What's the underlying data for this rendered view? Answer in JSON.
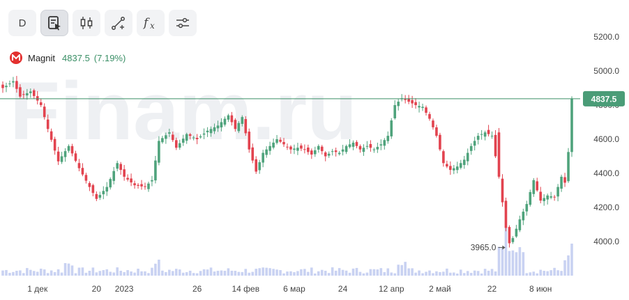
{
  "toolbar": {
    "interval_label": "D",
    "buttons": [
      "interval-button",
      "indicator-template-icon",
      "candle-type-icon",
      "drawing-tool-icon",
      "function-fx-icon",
      "settings-sliders-icon"
    ]
  },
  "legend": {
    "ticker": "Magnit",
    "last_price": "4837.5",
    "change": "(7.19%)"
  },
  "watermark": "Finam.ru",
  "colors": {
    "up": "#4fa37c",
    "down": "#e2434f",
    "volume": "#c9d2f2",
    "price_line": "#3a8f66",
    "price_label_bg": "#4a9c77"
  },
  "chart_data": {
    "type": "candlestick",
    "y_axis": {
      "min": 3900,
      "max": 5300,
      "ticks": [
        4000,
        4200,
        4400,
        4600,
        4800,
        5000,
        5200
      ]
    },
    "tick_labels": [
      "4000.0",
      "4200.0",
      "4400.0",
      "4600.0",
      "4800.0",
      "5000.0",
      "5200.0"
    ],
    "x_labels": [
      {
        "label": "1 дек",
        "index": 10
      },
      {
        "label": "20",
        "index": 27
      },
      {
        "label": "2023",
        "index": 35
      },
      {
        "label": "26",
        "index": 56
      },
      {
        "label": "14 фев",
        "index": 70
      },
      {
        "label": "6 мар",
        "index": 84
      },
      {
        "label": "24",
        "index": 98
      },
      {
        "label": "12 апр",
        "index": 112
      },
      {
        "label": "2 май",
        "index": 126
      },
      {
        "label": "22",
        "index": 141
      },
      {
        "label": "8 июн",
        "index": 155
      }
    ],
    "last_price": 4837.5,
    "last_price_label": "4837.5",
    "low_marker": {
      "value": 3965.0,
      "label": "3965.0",
      "index": 146
    },
    "anchor_closes": [
      [
        0,
        4900
      ],
      [
        3,
        4940
      ],
      [
        5,
        4850
      ],
      [
        8,
        4880
      ],
      [
        11,
        4800
      ],
      [
        13,
        4660
      ],
      [
        16,
        4470
      ],
      [
        19,
        4560
      ],
      [
        22,
        4430
      ],
      [
        25,
        4320
      ],
      [
        27,
        4250
      ],
      [
        30,
        4320
      ],
      [
        33,
        4460
      ],
      [
        35,
        4380
      ],
      [
        38,
        4330
      ],
      [
        41,
        4320
      ],
      [
        43,
        4360
      ],
      [
        45,
        4590
      ],
      [
        48,
        4640
      ],
      [
        50,
        4550
      ],
      [
        53,
        4630
      ],
      [
        56,
        4600
      ],
      [
        59,
        4650
      ],
      [
        62,
        4680
      ],
      [
        65,
        4740
      ],
      [
        67,
        4660
      ],
      [
        69,
        4730
      ],
      [
        71,
        4540
      ],
      [
        73,
        4410
      ],
      [
        75,
        4520
      ],
      [
        77,
        4560
      ],
      [
        79,
        4600
      ],
      [
        81,
        4570
      ],
      [
        83,
        4540
      ],
      [
        85,
        4550
      ],
      [
        87,
        4540
      ],
      [
        89,
        4510
      ],
      [
        91,
        4560
      ],
      [
        93,
        4500
      ],
      [
        95,
        4530
      ],
      [
        97,
        4520
      ],
      [
        99,
        4560
      ],
      [
        101,
        4580
      ],
      [
        103,
        4540
      ],
      [
        105,
        4560
      ],
      [
        107,
        4540
      ],
      [
        109,
        4570
      ],
      [
        111,
        4620
      ],
      [
        113,
        4800
      ],
      [
        115,
        4840
      ],
      [
        117,
        4820
      ],
      [
        119,
        4800
      ],
      [
        121,
        4790
      ],
      [
        123,
        4720
      ],
      [
        125,
        4620
      ],
      [
        127,
        4460
      ],
      [
        129,
        4420
      ],
      [
        131,
        4440
      ],
      [
        133,
        4480
      ],
      [
        135,
        4560
      ],
      [
        137,
        4620
      ],
      [
        139,
        4640
      ],
      [
        141,
        4620
      ],
      [
        143,
        4380
      ],
      [
        145,
        4080
      ],
      [
        146,
        3990
      ],
      [
        147,
        4020
      ],
      [
        149,
        4130
      ],
      [
        151,
        4220
      ],
      [
        153,
        4360
      ],
      [
        155,
        4240
      ],
      [
        157,
        4270
      ],
      [
        159,
        4260
      ],
      [
        161,
        4380
      ],
      [
        162,
        4345
      ],
      [
        163,
        4525
      ],
      [
        164,
        4837.5
      ]
    ],
    "volume_scale": {
      "min": 0,
      "max": 1
    }
  }
}
